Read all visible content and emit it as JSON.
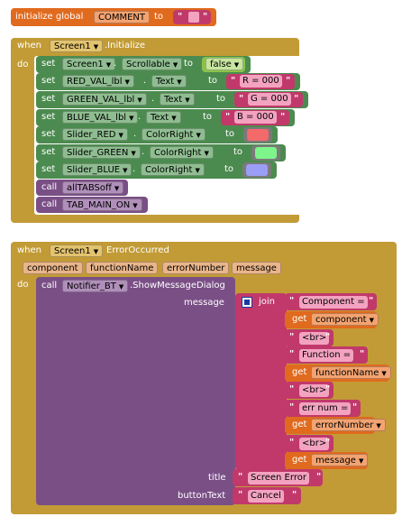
{
  "global_block": {
    "initialize_label": "initialize global",
    "var_name": "COMMENT",
    "to_label": "to",
    "value": ""
  },
  "init_event": {
    "when_label": "when",
    "component": "Screen1",
    "event": ".Initialize",
    "do_label": "do",
    "set_blocks": [
      {
        "set": "set",
        "component": "Screen1",
        "property": "Scrollable",
        "to": "to",
        "value": "false",
        "value_kind": "logic"
      },
      {
        "set": "set",
        "component": "RED_VAL_lbl",
        "property": "Text",
        "to": "to",
        "value": "R = 000",
        "value_kind": "text"
      },
      {
        "set": "set",
        "component": "GREEN_VAL_lbl",
        "property": "Text",
        "to": "to",
        "value": "G = 000",
        "value_kind": "text"
      },
      {
        "set": "set",
        "component": "BLUE_VAL_lbl",
        "property": "Text",
        "to": "to",
        "value": "B = 000",
        "value_kind": "text"
      },
      {
        "set": "set",
        "component": "Slider_RED",
        "property": "ColorRight",
        "to": "to",
        "value_kind": "color",
        "color": "#f26a6a"
      },
      {
        "set": "set",
        "component": "Slider_GREEN",
        "property": "ColorRight",
        "to": "to",
        "value_kind": "color",
        "color": "#7df58a"
      },
      {
        "set": "set",
        "component": "Slider_BLUE",
        "property": "ColorRight",
        "to": "to",
        "value_kind": "color",
        "color": "#9a9ef5"
      }
    ],
    "calls": [
      {
        "call": "call",
        "procedure": "allTABSoff"
      },
      {
        "call": "call",
        "procedure": "TAB_MAIN_ON"
      }
    ]
  },
  "error_event": {
    "when_label": "when",
    "component": "Screen1",
    "event": "ErrorOccurred",
    "params": [
      "component",
      "functionName",
      "errorNumber",
      "message"
    ],
    "do_label": "do",
    "call_label": "call",
    "notifier": "Notifier_BT",
    "method": ".ShowMessageDialog",
    "message_label": "message",
    "join_label": "join",
    "join_items": [
      {
        "kind": "text",
        "value": "Component = "
      },
      {
        "kind": "get",
        "get": "get",
        "var": "component"
      },
      {
        "kind": "text",
        "value": "<br>"
      },
      {
        "kind": "text",
        "value": "Function = "
      },
      {
        "kind": "get",
        "get": "get",
        "var": "functionName"
      },
      {
        "kind": "text",
        "value": "<br>"
      },
      {
        "kind": "text",
        "value": "err num = "
      },
      {
        "kind": "get",
        "get": "get",
        "var": "errorNumber"
      },
      {
        "kind": "text",
        "value": "<br>"
      },
      {
        "kind": "get",
        "get": "get",
        "var": "message"
      }
    ],
    "title_label": "title",
    "title_value": "Screen Error",
    "button_label": "buttonText",
    "button_value": "Cancel"
  },
  "colors": {
    "event_gold": "#c29b36",
    "setter_green": "#4c8b4f",
    "text_pink": "#c1396b",
    "procedure_purple": "#7a4f86",
    "variable_orange": "#e06a1e",
    "logic_green": "#8bc34a"
  },
  "icons": {
    "dropdown": "triangle-down-icon",
    "join_mutator": "gear-square-icon",
    "quote": "quote-mark"
  }
}
